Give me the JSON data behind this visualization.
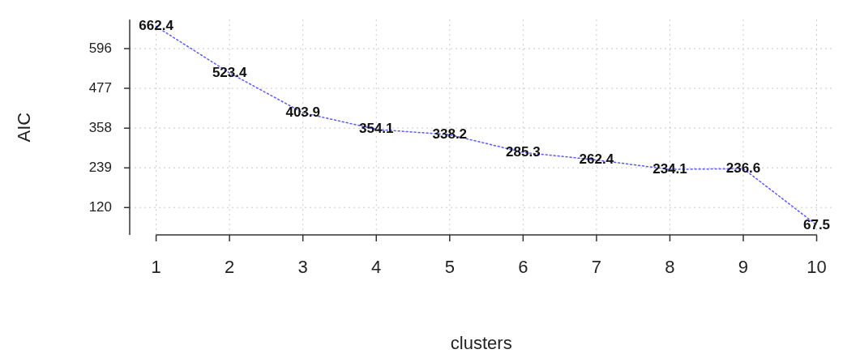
{
  "chart_data": {
    "type": "line",
    "xlabel": "clusters",
    "ylabel": "AIC",
    "x": [
      1,
      2,
      3,
      4,
      5,
      6,
      7,
      8,
      9,
      10
    ],
    "series": [
      {
        "color": "#5a5aff",
        "values": [
          662.4,
          523.4,
          403.9,
          354.1,
          338.2,
          285.3,
          262.4,
          234.1,
          236.6,
          67.5
        ]
      }
    ],
    "xlim": [
      0.64,
      10.22
    ],
    "xticks": [
      1,
      2,
      3,
      4,
      5,
      6,
      7,
      8,
      9,
      10
    ],
    "ylim": [
      38,
      683
    ],
    "yticks": [
      120,
      239,
      358,
      477,
      596
    ],
    "grid": true,
    "legend": false,
    "marker": "none",
    "line_style": "dotted",
    "data_labels": true
  }
}
